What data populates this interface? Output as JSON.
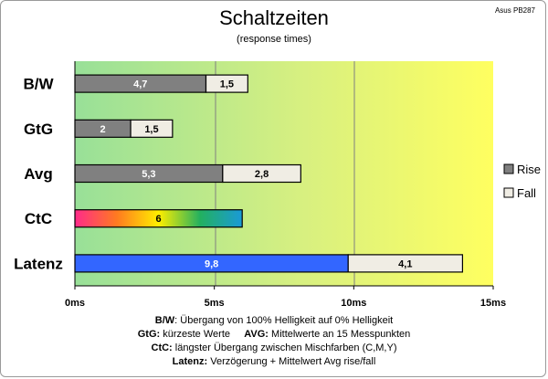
{
  "chart_data": {
    "type": "bar",
    "orientation": "horizontal",
    "stacked": true,
    "title": "Schaltzeiten",
    "subtitle": "(response times)",
    "corner_label": "Asus PB287",
    "categories": [
      "B/W",
      "GtG",
      "Avg",
      "CtC",
      "Latenz"
    ],
    "series": [
      {
        "name": "Rise",
        "values": [
          4.7,
          2,
          5.3,
          6,
          9.8
        ],
        "value_labels": [
          "4,7",
          "2",
          "5,3",
          "6",
          "9,8"
        ],
        "color": "#808080"
      },
      {
        "name": "Fall",
        "values": [
          1.5,
          1.5,
          2.8,
          null,
          4.1
        ],
        "value_labels": [
          "1,5",
          "1,5",
          "2,8",
          "",
          "4,1"
        ],
        "color": "#f0ede4"
      }
    ],
    "special_colors": {
      "CtC": "rainbow-gradient",
      "Latenz": "#3366ff"
    },
    "xlim": [
      0,
      15
    ],
    "xticks": [
      0,
      5,
      10,
      15
    ],
    "xtick_labels": [
      "0ms",
      "5ms",
      "10ms",
      "15ms"
    ],
    "grid": true,
    "background_gradient": [
      "#98e098",
      "#ffff60"
    ],
    "legend_position": "right"
  },
  "notes": [
    {
      "key": "B/W",
      "text": ":  Übergang von 100% Helligkeit auf 0% Helligkeit"
    },
    {
      "key": "GtG:",
      "text": " kürzeste  Werte",
      "key2": "AVG:",
      "text2": " Mittelwerte  an 15 Messpunkten"
    },
    {
      "key": "CtC:",
      "text": " längster Übergang zwischen Mischfarben (C,M,Y)"
    },
    {
      "key": "Latenz:",
      "text": " Verzögerung  + Mittelwert Avg rise/fall"
    }
  ]
}
